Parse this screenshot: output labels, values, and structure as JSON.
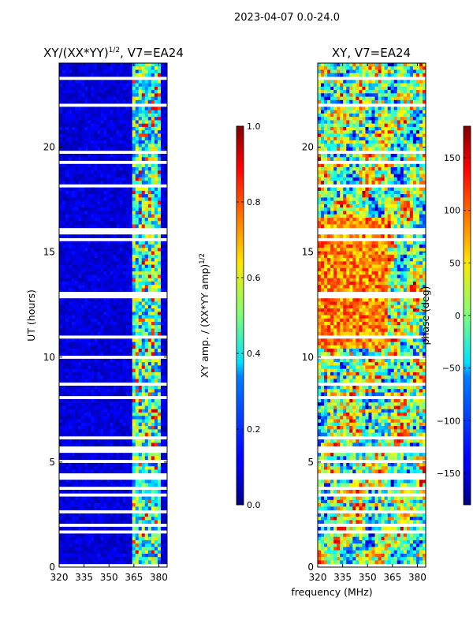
{
  "suptitle": "2023-04-07 0.0-24.0",
  "chart_data": [
    {
      "type": "heatmap",
      "title": "XY/(XX*YY)^1/2, V7=EA24",
      "title_main": "XY/(XX*YY)",
      "title_exp": "1/2",
      "title_rest": ", V7=EA24",
      "xlabel": "",
      "ylabel": "UT (hours)",
      "xlim": [
        320,
        385
      ],
      "ylim": [
        0,
        24
      ],
      "xticks": [
        320,
        335,
        350,
        365,
        380
      ],
      "yticks": [
        0,
        5,
        10,
        15,
        20
      ],
      "colorbar": {
        "label": "XY amp. / (XX*YY amp)^1/2",
        "label_main": "XY amp. / (XX*YY amp)",
        "label_exp": "1/2",
        "range": [
          0.0,
          1.0
        ],
        "ticks": [
          "0.0",
          "0.2",
          "0.4",
          "0.6",
          "0.8",
          "1.0"
        ],
        "tick_values": [
          0.0,
          0.2,
          0.4,
          0.6,
          0.8,
          1.0
        ]
      },
      "bright_channel_band_mhz": [
        364,
        382
      ],
      "typical_value_outside_band": 0.08,
      "typical_value_inside_band": 0.4
    },
    {
      "type": "heatmap",
      "title": "XY, V7=EA24",
      "xlabel": "frequency (MHz)",
      "ylabel": "",
      "xlim": [
        320,
        385
      ],
      "ylim": [
        0,
        24
      ],
      "xticks": [
        320,
        335,
        350,
        365,
        380
      ],
      "yticks": [
        0,
        5,
        10,
        15,
        20
      ],
      "colorbar": {
        "label": "phase (deg)",
        "range": [
          -180,
          180
        ],
        "ticks": [
          "150",
          "100",
          "50",
          "0",
          "−50",
          "−100",
          "−150"
        ],
        "tick_values": [
          150,
          100,
          50,
          0,
          -50,
          -100,
          -150
        ]
      }
    }
  ]
}
